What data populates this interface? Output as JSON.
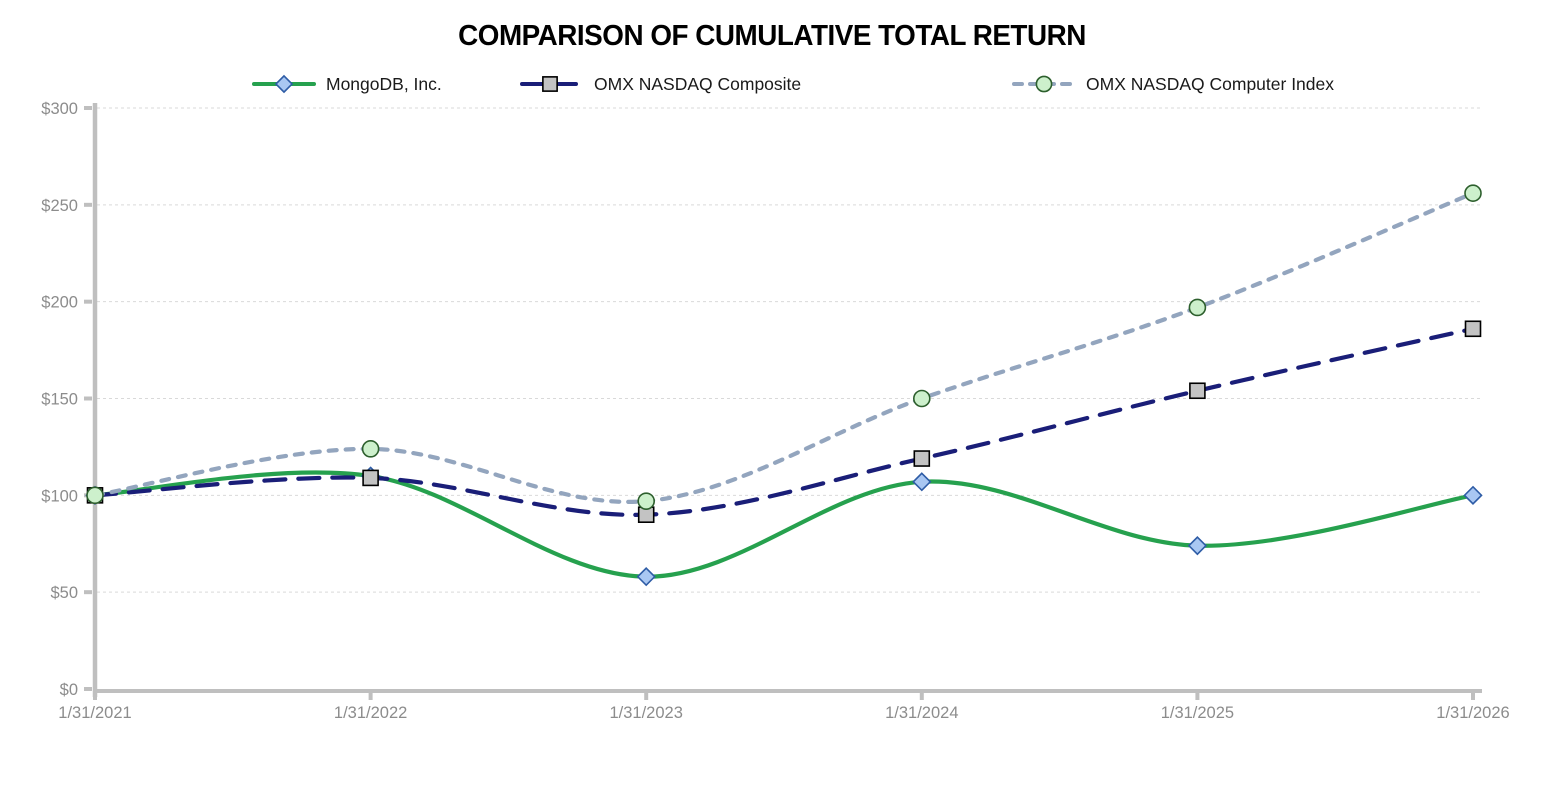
{
  "chart_data": {
    "type": "line",
    "title": "COMPARISON OF CUMULATIVE TOTAL RETURN",
    "categories": [
      "1/31/2021",
      "1/31/2022",
      "1/31/2023",
      "1/31/2024",
      "1/31/2025",
      "1/31/2026"
    ],
    "series": [
      {
        "name": "MongoDB, Inc.",
        "values": [
          100,
          110,
          58,
          107,
          74,
          100
        ],
        "line_color": "#26A14E",
        "line_style": "solid",
        "marker": "diamond",
        "marker_fill": "#A9C7F2",
        "marker_stroke": "#2E5CA6"
      },
      {
        "name": "OMX NASDAQ Composite",
        "values": [
          100,
          109,
          90,
          119,
          154,
          186
        ],
        "line_color": "#1A1E78",
        "line_style": "long-dash",
        "marker": "square",
        "marker_fill": "#C3C3C3",
        "marker_stroke": "#000000"
      },
      {
        "name": "OMX NASDAQ Computer Index",
        "values": [
          100,
          124,
          97,
          150,
          197,
          256
        ],
        "line_color": "#93A5BE",
        "line_style": "short-dash",
        "marker": "circle",
        "marker_fill": "#CDF0CC",
        "marker_stroke": "#2D5F2D"
      }
    ],
    "xlabel": "",
    "ylabel": "",
    "y_axis": {
      "min": 0,
      "max": 300,
      "step": 50,
      "prefix": "$",
      "tick_labels": [
        "$0",
        "$50",
        "$100",
        "$150",
        "$200",
        "$250",
        "$300"
      ]
    },
    "smooth": true,
    "grid": true,
    "legend_position": "top",
    "colors": {
      "axis": "#BFBFBF",
      "grid": "#D9D9D9",
      "tick_label": "#8C8C8C",
      "title": "#000000",
      "legend_text": "#1A1A1A"
    }
  }
}
